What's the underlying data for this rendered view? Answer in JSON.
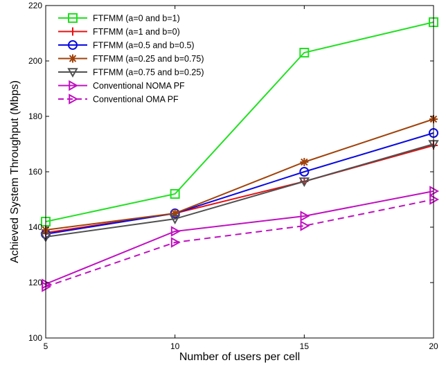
{
  "chart_data": {
    "type": "line",
    "xlabel": "Number of users per cell",
    "ylabel": "Achieved System Throughput (Mbps)",
    "xlim": [
      5,
      20
    ],
    "ylim": [
      100,
      220
    ],
    "xticks": [
      5,
      10,
      15,
      20
    ],
    "yticks": [
      100,
      120,
      140,
      160,
      180,
      200,
      220
    ],
    "x": [
      5,
      10,
      15,
      20
    ],
    "grid": false,
    "legend_position": "top-left",
    "series": [
      {
        "name": "FTFMM (a=0 and b=1)",
        "values": [
          142,
          152,
          203,
          214
        ],
        "color": "#22e022",
        "marker": "square",
        "dash": "solid"
      },
      {
        "name": "FTFMM (a=1 and b=0)",
        "values": [
          138,
          145,
          156.5,
          169.5
        ],
        "color": "#e81010",
        "marker": "plus",
        "dash": "solid"
      },
      {
        "name": "FTFMM (a=0.5 and b=0.5)",
        "values": [
          137.5,
          145,
          160,
          174
        ],
        "color": "#0a0ae0",
        "marker": "circle",
        "dash": "solid"
      },
      {
        "name": "FTFMM (a=0.25 and b=0.75)",
        "values": [
          139,
          145,
          163.5,
          179
        ],
        "color": "#a0420a",
        "marker": "star",
        "dash": "solid"
      },
      {
        "name": "FTFMM (a=0.75 and b=0.25)",
        "values": [
          136.5,
          143,
          156.5,
          170
        ],
        "color": "#505050",
        "marker": "triangle-down",
        "dash": "solid"
      },
      {
        "name": "Conventional NOMA PF",
        "values": [
          119.5,
          138.5,
          144,
          153
        ],
        "color": "#c010c0",
        "marker": "triangle-right",
        "dash": "solid"
      },
      {
        "name": "Conventional OMA PF",
        "values": [
          118.5,
          134.5,
          140.5,
          150
        ],
        "color": "#c010c0",
        "marker": "triangle-right",
        "dash": "dashed"
      }
    ]
  }
}
